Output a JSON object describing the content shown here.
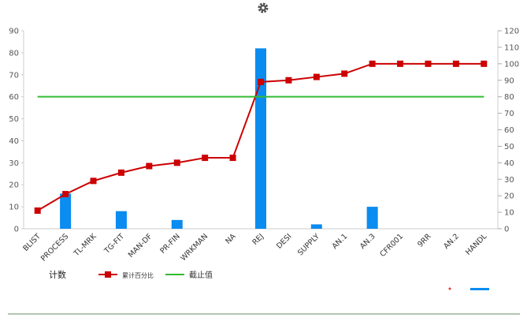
{
  "chart_data": {
    "type": "pareto",
    "categories": [
      "BLIST",
      "PROCESS",
      "TL-MRK",
      "TG-FIT",
      "MAN-DF",
      "PR-FIN",
      "WRKMAN",
      "NA",
      "REJ",
      "DESI",
      "SUPPLY",
      "AN.1",
      "AN.3",
      "CFR001",
      "9RR",
      "AN.2",
      "HANDL"
    ],
    "series": [
      {
        "name": "计数",
        "type": "bar",
        "color": "#0a8cf0",
        "values": [
          0,
          16,
          0,
          8,
          0,
          4,
          0,
          0,
          82,
          0,
          2,
          0,
          10,
          0,
          0,
          0,
          0
        ]
      },
      {
        "name": "累计百分比",
        "type": "line",
        "axis": "y2",
        "color": "#cc0000",
        "values": [
          11,
          21,
          29,
          34,
          38,
          40,
          43,
          43,
          89,
          90,
          92,
          94,
          100,
          100,
          100,
          100,
          100
        ]
      },
      {
        "name": "截止值",
        "type": "line",
        "axis": "y2",
        "color": "#33bb33",
        "values": [
          80,
          80,
          80,
          80,
          80,
          80,
          80,
          80,
          80,
          80,
          80,
          80,
          80,
          80,
          80,
          80,
          80
        ]
      }
    ],
    "ylim": [
      0,
      90
    ],
    "yticks": [
      0,
      10,
      20,
      30,
      40,
      50,
      60,
      70,
      80,
      90
    ],
    "y2lim": [
      0,
      120
    ],
    "y2ticks": [
      0,
      10,
      20,
      30,
      40,
      50,
      60,
      70,
      80,
      90,
      100,
      110,
      120
    ]
  }
}
